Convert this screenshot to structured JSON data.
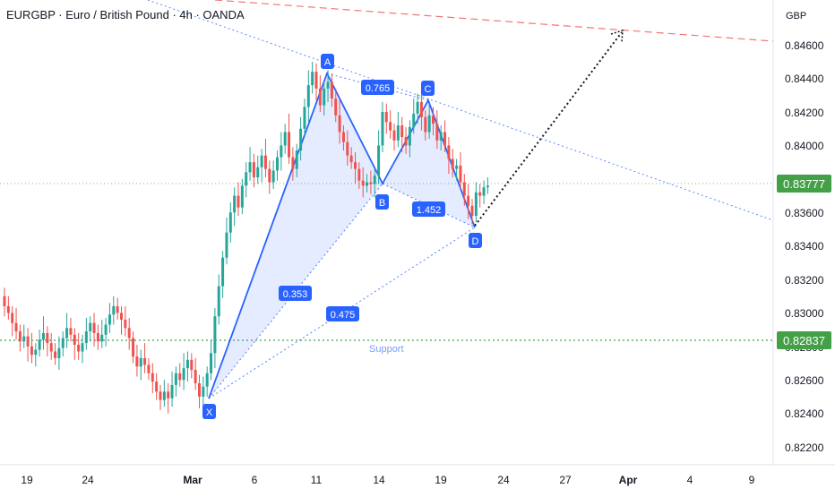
{
  "header": {
    "title": "EURGBP · Euro / British Pound · 4h · OANDA"
  },
  "chart_data": {
    "type": "candlestick",
    "currency_label": "GBP",
    "y_ticks": [
      "0.84600",
      "0.84400",
      "0.84200",
      "0.84000",
      "0.83600",
      "0.83400",
      "0.83200",
      "0.83000",
      "0.82800",
      "0.82600",
      "0.82400",
      "0.82200"
    ],
    "x_ticks": [
      "19",
      "24",
      "Mar",
      "6",
      "11",
      "14",
      "19",
      "24",
      "27",
      "Apr",
      "4",
      "9"
    ],
    "ylim": [
      0.8212,
      0.8475
    ],
    "price_badges": [
      {
        "value": "0.83777",
        "color": "#43a047"
      },
      {
        "value": "0.82837",
        "color": "#43a047"
      }
    ],
    "pattern_points": [
      {
        "label": "X",
        "date": "2024-03-04",
        "price": 0.8251
      },
      {
        "label": "A",
        "date": "2024-03-11",
        "price": 0.8446
      },
      {
        "label": "B",
        "date": "2024-03-14",
        "price": 0.8378
      },
      {
        "label": "C",
        "date": "2024-03-18",
        "price": 0.8428
      },
      {
        "label": "D",
        "date": "2024-03-21",
        "price": 0.8352
      }
    ],
    "ratios": [
      "0.765",
      "1.452",
      "0.353",
      "0.475"
    ],
    "annotation": "Support",
    "colors": {
      "up": "#26a69a",
      "down": "#ef5350",
      "pattern": "#2962ff"
    },
    "candles": {
      "start_price": 0.8312,
      "closes": [
        0.8306,
        0.8302,
        0.8296,
        0.8291,
        0.8285,
        0.8288,
        0.8282,
        0.8277,
        0.828,
        0.8286,
        0.829,
        0.8284,
        0.8279,
        0.8275,
        0.8281,
        0.8287,
        0.8293,
        0.8289,
        0.8283,
        0.8279,
        0.8284,
        0.8291,
        0.8296,
        0.829,
        0.8285,
        0.8289,
        0.8295,
        0.8301,
        0.8306,
        0.8302,
        0.8298,
        0.8293,
        0.8287,
        0.8276,
        0.827,
        0.8275,
        0.8271,
        0.8266,
        0.8261,
        0.8255,
        0.825,
        0.8255,
        0.8251,
        0.8259,
        0.8266,
        0.8262,
        0.8269,
        0.8274,
        0.8268,
        0.826,
        0.8252,
        0.8258,
        0.8266,
        0.8278,
        0.83,
        0.8318,
        0.8335,
        0.835,
        0.8362,
        0.8372,
        0.8365,
        0.8378,
        0.8386,
        0.8392,
        0.8383,
        0.8389,
        0.8396,
        0.8388,
        0.838,
        0.8387,
        0.8395,
        0.8402,
        0.841,
        0.8395,
        0.8388,
        0.8399,
        0.8412,
        0.8425,
        0.8438,
        0.8446,
        0.8436,
        0.8426,
        0.8436,
        0.844,
        0.843,
        0.842,
        0.841,
        0.8404,
        0.8396,
        0.8392,
        0.8388,
        0.8381,
        0.8378,
        0.838,
        0.8379,
        0.8384,
        0.8402,
        0.8422,
        0.8416,
        0.8411,
        0.8405,
        0.8414,
        0.8407,
        0.8402,
        0.8413,
        0.8421,
        0.8428,
        0.8419,
        0.841,
        0.842,
        0.8415,
        0.8405,
        0.841,
        0.8402,
        0.8394,
        0.8388,
        0.839,
        0.838,
        0.8372,
        0.8366,
        0.836,
        0.8374,
        0.8372,
        0.8377,
        0.8378
      ],
      "high_offsets": [
        0.0005,
        0.0006,
        0.0004,
        0.0009,
        0.0004,
        0.0007,
        0.0005,
        0.0008,
        0.0004,
        0.0006,
        0.001,
        0.0004,
        0.0006,
        0.0005,
        0.0007,
        0.0004,
        0.0009,
        0.0006,
        0.0004,
        0.0007,
        0.0005,
        0.0008,
        0.0004,
        0.0006,
        0.0005,
        0.0009,
        0.0004,
        0.0007,
        0.0006,
        0.0005,
        0.0004,
        0.0008,
        0.0006,
        0.0004,
        0.0007,
        0.0005,
        0.0009,
        0.0004,
        0.0006,
        0.0005,
        0.0004,
        0.0007,
        0.0005,
        0.0008,
        0.0004,
        0.0006,
        0.0009,
        0.0005,
        0.0004,
        0.0007,
        0.0005,
        0.0006,
        0.0004,
        0.0008,
        0.0005,
        0.0007,
        0.0004,
        0.0009,
        0.0006,
        0.0005,
        0.0008,
        0.0004,
        0.0006,
        0.0009,
        0.0005,
        0.0007,
        0.0004,
        0.001,
        0.0005,
        0.0006,
        0.0004,
        0.0008,
        0.0005,
        0.0011,
        0.0006,
        0.0004,
        0.0007,
        0.0005,
        0.0009,
        0.0006,
        0.0005,
        0.0008,
        0.0004,
        0.0007,
        0.0005,
        0.0006,
        0.0009,
        0.0004,
        0.0007,
        0.0005,
        0.0006,
        0.0004,
        0.0008,
        0.0005,
        0.0007,
        0.0004,
        0.0009,
        0.0006,
        0.0005,
        0.0007,
        0.0004,
        0.0008,
        0.0005,
        0.0006,
        0.0004,
        0.0009,
        0.0005,
        0.0007,
        0.0004,
        0.0006,
        0.0005,
        0.0008,
        0.0004,
        0.0007,
        0.0005,
        0.0006,
        0.0004,
        0.0008,
        0.0005,
        0.0007,
        0.0004,
        0.0006,
        0.0005,
        0.0004,
        0.0005
      ],
      "low_offsets": [
        0.0006,
        0.0004,
        0.0008,
        0.0005,
        0.0006,
        0.0004,
        0.0009,
        0.0005,
        0.0007,
        0.0004,
        0.0006,
        0.0008,
        0.0005,
        0.0004,
        0.0007,
        0.0005,
        0.0006,
        0.0004,
        0.0009,
        0.0005,
        0.0007,
        0.0004,
        0.0006,
        0.0008,
        0.0005,
        0.0004,
        0.0007,
        0.0005,
        0.0006,
        0.0004,
        0.0009,
        0.0005,
        0.0007,
        0.0004,
        0.0006,
        0.0008,
        0.0005,
        0.0004,
        0.0007,
        0.0005,
        0.0006,
        0.0004,
        0.0009,
        0.0005,
        0.0007,
        0.0004,
        0.0006,
        0.0008,
        0.0005,
        0.0004,
        0.0007,
        0.0005,
        0.0006,
        0.0004,
        0.0009,
        0.0005,
        0.0007,
        0.0004,
        0.0006,
        0.0008,
        0.0005,
        0.0004,
        0.0007,
        0.0005,
        0.0006,
        0.0004,
        0.0009,
        0.0005,
        0.0007,
        0.0004,
        0.0006,
        0.0008,
        0.0005,
        0.0004,
        0.0007,
        0.0005,
        0.0006,
        0.0004,
        0.0009,
        0.0005,
        0.0007,
        0.0004,
        0.0006,
        0.0008,
        0.0005,
        0.0004,
        0.0007,
        0.0005,
        0.0006,
        0.0004,
        0.0009,
        0.0005,
        0.0007,
        0.0004,
        0.0006,
        0.0008,
        0.0005,
        0.0004,
        0.0007,
        0.0005,
        0.0006,
        0.0004,
        0.0009,
        0.0005,
        0.0007,
        0.0004,
        0.0006,
        0.0008,
        0.0005,
        0.0004,
        0.0007,
        0.0005,
        0.0006,
        0.0004,
        0.0009,
        0.0005,
        0.0007,
        0.0004,
        0.0006,
        0.0008,
        0.0005,
        0.0004,
        0.0007,
        0.0005,
        0.0004
      ]
    }
  }
}
